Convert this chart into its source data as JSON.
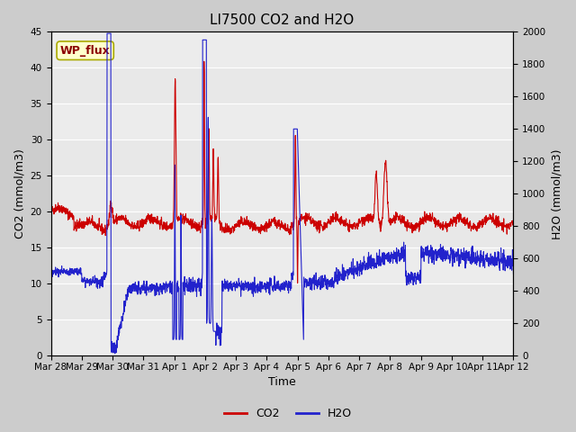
{
  "title": "LI7500 CO2 and H2O",
  "xlabel": "Time",
  "ylabel_left": "CO2 (mmol/m3)",
  "ylabel_right": "H2O (mmol/m3)",
  "co2_ylim": [
    0,
    45
  ],
  "h2o_ylim": [
    0,
    2000
  ],
  "co2_color": "#cc0000",
  "h2o_color": "#2222cc",
  "fig_bg_color": "#cccccc",
  "plot_bg_color": "#e8e8e8",
  "annotation_text": "WP_flux",
  "annotation_bg": "#ffffcc",
  "annotation_border": "#aaaa00",
  "x_tick_labels": [
    "Mar 28",
    "Mar 29",
    "Mar 30",
    "Mar 31",
    "Apr 1",
    "Apr 2",
    "Apr 3",
    "Apr 4",
    "Apr 5",
    "Apr 6",
    "Apr 7",
    "Apr 8",
    "Apr 9",
    "Apr 10",
    "Apr 11",
    "Apr 12"
  ],
  "title_fontsize": 11,
  "axis_fontsize": 9,
  "tick_fontsize": 7.5,
  "legend_fontsize": 9,
  "grid_color": "#ffffff",
  "co2_yticks": [
    0,
    5,
    10,
    15,
    20,
    25,
    30,
    35,
    40,
    45
  ],
  "h2o_yticks": [
    0,
    200,
    400,
    600,
    800,
    1000,
    1200,
    1400,
    1600,
    1800,
    2000
  ]
}
